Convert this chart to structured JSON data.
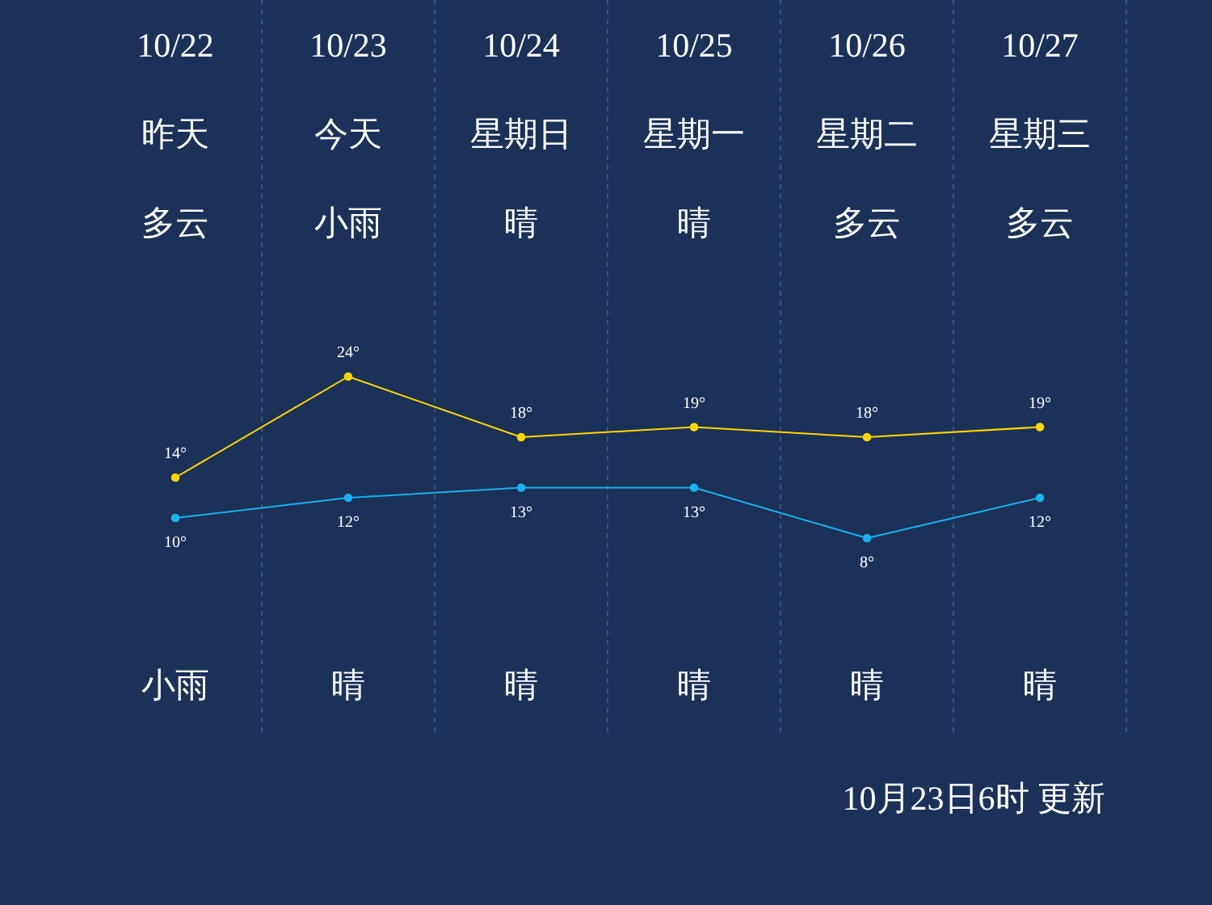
{
  "chart_data": {
    "type": "line",
    "categories": [
      "10/22",
      "10/23",
      "10/24",
      "10/25",
      "10/26",
      "10/27"
    ],
    "series": [
      {
        "color": "#ffd700",
        "values": [
          14,
          24,
          18,
          19,
          18,
          19
        ],
        "value_labels": [
          "14°",
          "24°",
          "18°",
          "19°",
          "18°",
          "19°"
        ]
      },
      {
        "color": "#1ab2f0",
        "values": [
          10,
          12,
          13,
          13,
          8,
          12
        ],
        "value_labels": [
          "10°",
          "12°",
          "13°",
          "13°",
          "8°",
          "12°"
        ]
      }
    ],
    "annotations": [
      "昨天",
      "今天",
      "星期日",
      "星期一",
      "星期二",
      "星期三",
      "多云",
      "小雨",
      "晴",
      "晴",
      "多云",
      "多云",
      "小雨",
      "晴",
      "晴",
      "晴",
      "晴",
      "晴",
      "10月23日6时 更新"
    ],
    "marker": "circle",
    "grid": "x",
    "tick_labels": "x"
  }
}
